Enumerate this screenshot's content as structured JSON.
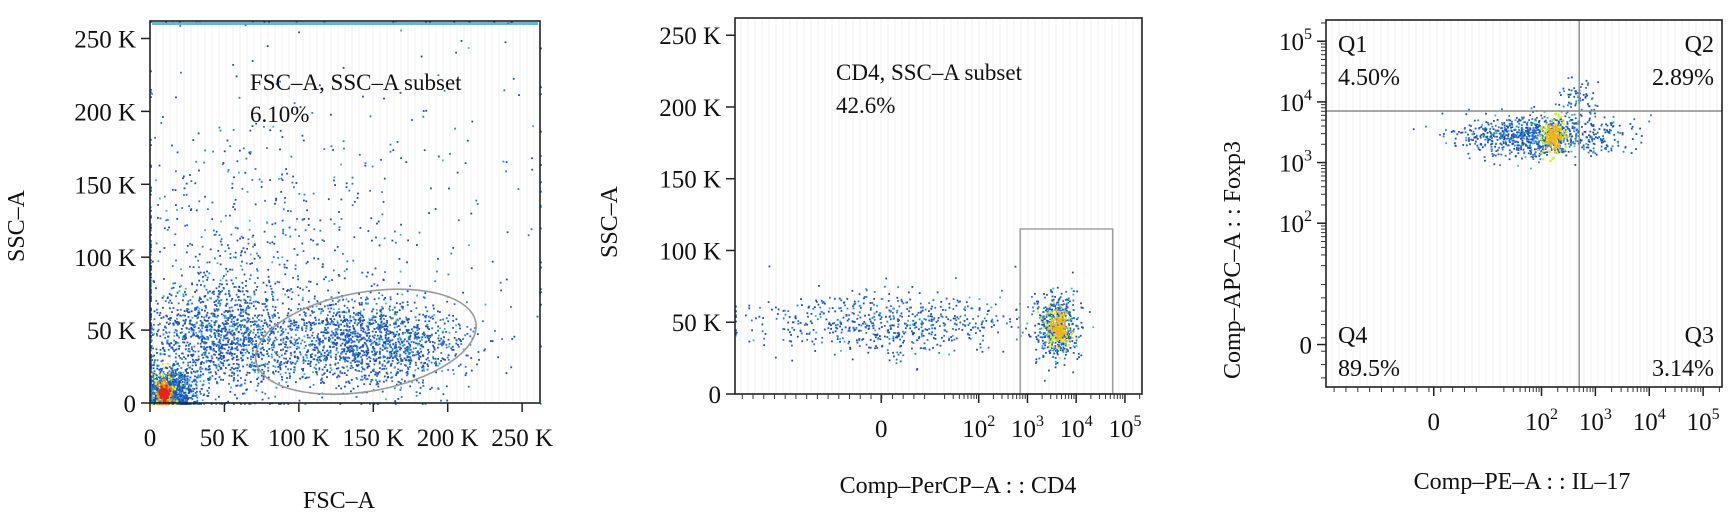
{
  "chart_data": [
    {
      "type": "scatter",
      "title": "",
      "xlabel": "FSC–A",
      "ylabel": "SSC–A",
      "x_scale": "linear",
      "y_scale": "linear",
      "xlim": [
        0,
        262000
      ],
      "ylim": [
        0,
        262000
      ],
      "x_ticks": [
        {
          "value": 0,
          "label": "0"
        },
        {
          "value": 50000,
          "label": "50 K"
        },
        {
          "value": 100000,
          "label": "100 K"
        },
        {
          "value": 150000,
          "label": "150 K"
        },
        {
          "value": 200000,
          "label": "200 K"
        },
        {
          "value": 250000,
          "label": "250 K"
        }
      ],
      "y_ticks": [
        {
          "value": 0,
          "label": "0"
        },
        {
          "value": 50000,
          "label": "50 K"
        },
        {
          "value": 100000,
          "label": "100 K"
        },
        {
          "value": 150000,
          "label": "150 K"
        },
        {
          "value": 200000,
          "label": "200 K"
        },
        {
          "value": 250000,
          "label": "250 K"
        }
      ],
      "gate": {
        "shape": "ellipse",
        "label": "FSC–A, SSC–A subset",
        "percent": "6.10%",
        "center": [
          145000,
          42000
        ],
        "radii": [
          75000,
          34000
        ],
        "angle_deg": -10
      },
      "populations": [
        {
          "cx": 10000,
          "cy": 8000,
          "sx": 9000,
          "sy": 7000,
          "n": 1400
        },
        {
          "cx": 45000,
          "cy": 45000,
          "sx": 27000,
          "sy": 19000,
          "n": 1300
        },
        {
          "cx": 145000,
          "cy": 42000,
          "sx": 33000,
          "sy": 15000,
          "n": 1500
        },
        {
          "cx": 70000,
          "cy": 90000,
          "sx": 55000,
          "sy": 45000,
          "n": 550
        },
        {
          "cx": 130000,
          "cy": 150000,
          "sx": 90000,
          "sy": 70000,
          "n": 260
        }
      ],
      "density_core": {
        "center": [
          9000,
          7000
        ],
        "levels": [
          "#e6f21f",
          "#f28a1a",
          "#e8231a"
        ]
      },
      "saturation_top_edge": true
    },
    {
      "type": "scatter",
      "title": "",
      "xlabel": "Comp–PerCP–A : : CD4",
      "ylabel": "SSC–A",
      "x_scale": "biexponential",
      "y_scale": "linear",
      "xlim": [
        -3,
        5.35
      ],
      "ylim": [
        0,
        262000
      ],
      "x_ticks": [
        {
          "value": 0,
          "label": "0",
          "sup": ""
        },
        {
          "value": 2,
          "label": "10",
          "sup": "2"
        },
        {
          "value": 3,
          "label": "10",
          "sup": "3"
        },
        {
          "value": 4,
          "label": "10",
          "sup": "4"
        },
        {
          "value": 5,
          "label": "10",
          "sup": "5"
        }
      ],
      "y_ticks": [
        {
          "value": 0,
          "label": "0"
        },
        {
          "value": 50000,
          "label": "50 K"
        },
        {
          "value": 100000,
          "label": "100 K"
        },
        {
          "value": 150000,
          "label": "150 K"
        },
        {
          "value": 200000,
          "label": "200 K"
        },
        {
          "value": 250000,
          "label": "250 K"
        }
      ],
      "gate": {
        "shape": "rectangle",
        "label": "CD4, SSC–A subset",
        "percent": "42.6%",
        "x_range": [
          2.85,
          4.75
        ],
        "y_range": [
          0,
          115000
        ]
      },
      "populations": [
        {
          "cx": 0.2,
          "cy": 50000,
          "sx": 1.5,
          "sy": 11000,
          "n": 650
        },
        {
          "cx": 3.6,
          "cy": 48000,
          "sx": 0.22,
          "sy": 11000,
          "n": 520
        }
      ],
      "density_core": {
        "center": [
          3.62,
          47000
        ],
        "levels": [
          "#d8ef2a",
          "#f0b21e"
        ]
      },
      "saturation_top_edge": false
    },
    {
      "type": "scatter",
      "title": "",
      "xlabel": "Comp–PE–A : : IL–17",
      "ylabel": "Comp–APC–A : : Foxp3",
      "x_scale": "biexponential",
      "y_scale": "biexponential",
      "xlim": [
        -2,
        5.35
      ],
      "ylim": [
        -0.7,
        5.35
      ],
      "x_ticks": [
        {
          "value": 0,
          "label": "0",
          "sup": ""
        },
        {
          "value": 2,
          "label": "10",
          "sup": "2"
        },
        {
          "value": 3,
          "label": "10",
          "sup": "3"
        },
        {
          "value": 4,
          "label": "10",
          "sup": "4"
        },
        {
          "value": 5,
          "label": "10",
          "sup": "5"
        }
      ],
      "y_ticks": [
        {
          "value": 0,
          "label": "0",
          "sup": ""
        },
        {
          "value": 2,
          "label": "10",
          "sup": "2"
        },
        {
          "value": 3,
          "label": "10",
          "sup": "3"
        },
        {
          "value": 4,
          "label": "10",
          "sup": "4"
        },
        {
          "value": 5,
          "label": "10",
          "sup": "5"
        }
      ],
      "quadrant_divider": {
        "x": 2.7,
        "y": 3.85
      },
      "quadrants": [
        {
          "id": "Q1",
          "percent": "4.50%",
          "corner": "top-left"
        },
        {
          "id": "Q2",
          "percent": "2.89%",
          "corner": "top-right"
        },
        {
          "id": "Q4",
          "percent": "89.5%",
          "corner": "bottom-left"
        },
        {
          "id": "Q3",
          "percent": "3.14%",
          "corner": "bottom-right"
        }
      ],
      "populations": [
        {
          "cx": 1.9,
          "cy": 3.45,
          "sx": 0.75,
          "sy": 0.17,
          "n": 900
        },
        {
          "cx": 2.65,
          "cy": 4.1,
          "sx": 0.18,
          "sy": 0.17,
          "n": 70
        }
      ],
      "density_core": {
        "center": [
          2.2,
          3.45
        ],
        "levels": [
          "#d8ef2a",
          "#f0b21e"
        ]
      },
      "saturation_top_edge": false
    }
  ]
}
